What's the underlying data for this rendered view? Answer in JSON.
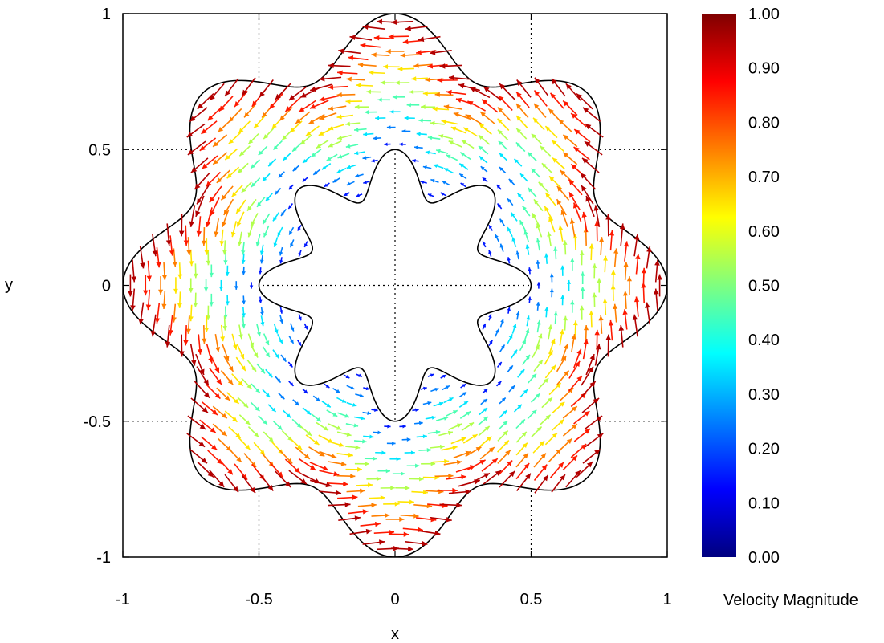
{
  "chart_data": {
    "type": "quiver",
    "title": "",
    "xlabel": "x",
    "ylabel": "y",
    "xlim": [
      -1,
      1
    ],
    "ylim": [
      -1,
      1
    ],
    "x_ticks": [
      {
        "value": -1,
        "label": "-1"
      },
      {
        "value": -0.5,
        "label": "-0.5"
      },
      {
        "value": 0,
        "label": "0"
      },
      {
        "value": 0.5,
        "label": "0.5"
      },
      {
        "value": 1,
        "label": "1"
      }
    ],
    "y_ticks": [
      {
        "value": -1,
        "label": "-1"
      },
      {
        "value": -0.5,
        "label": "-0.5"
      },
      {
        "value": 0,
        "label": "0"
      },
      {
        "value": 0.5,
        "label": "0.5"
      },
      {
        "value": 1,
        "label": "1"
      }
    ],
    "grid": "dotted",
    "domain": {
      "description": "annular region between two star-shaped boundaries with 8 lobes",
      "outer_boundary": {
        "base_radius": 0.9,
        "amplitude": 0.1,
        "lobes": 8
      },
      "inner_boundary": {
        "base_radius": 0.415,
        "amplitude": 0.085,
        "lobes": 8
      }
    },
    "field": {
      "description": "counter-clockwise rotational flow; speed grows from inner to outer boundary",
      "direction": "counter-clockwise",
      "speed_at_inner_boundary": 0.1,
      "speed_at_outer_boundary": 1.0
    },
    "colorbar": {
      "title": "Velocity Magnitude",
      "range": [
        0,
        1
      ],
      "tick_labels": [
        "0.00",
        "0.10",
        "0.20",
        "0.30",
        "0.40",
        "0.50",
        "0.60",
        "0.70",
        "0.80",
        "0.90",
        "1.00"
      ],
      "colormap": [
        "#00007f",
        "#0000ff",
        "#007fff",
        "#00ffff",
        "#7fff7f",
        "#ffff00",
        "#ff7f00",
        "#ff0000",
        "#7f0000"
      ]
    }
  }
}
